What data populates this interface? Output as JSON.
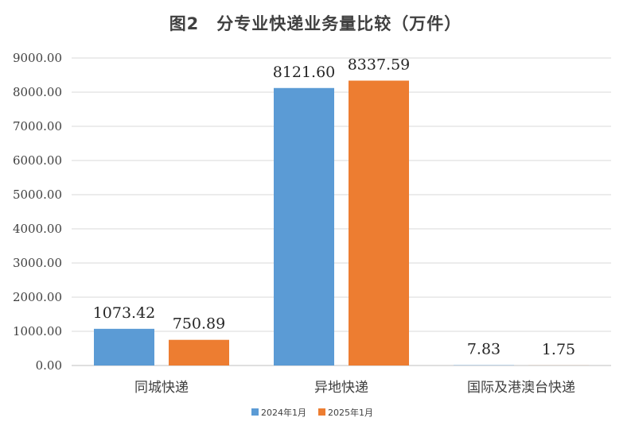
{
  "chart_data": {
    "type": "bar",
    "title": "图2　分专业快递业务量比较（万件）",
    "categories": [
      "同城快递",
      "异地快递",
      "国际及港澳台快递"
    ],
    "series": [
      {
        "name": "2024年1月",
        "values": [
          1073.42,
          8121.6,
          7.83
        ],
        "labels": [
          "1073.42",
          "8121.60",
          "7.83"
        ],
        "color": "#5B9BD5"
      },
      {
        "name": "2025年1月",
        "values": [
          750.89,
          8337.59,
          1.75
        ],
        "labels": [
          "750.89",
          "8337.59",
          "1.75"
        ],
        "color": "#ED7D31"
      }
    ],
    "yticks": [
      "0.00",
      "1000.00",
      "2000.00",
      "3000.00",
      "4000.00",
      "5000.00",
      "6000.00",
      "7000.00",
      "8000.00",
      "9000.00"
    ],
    "ylim": [
      0,
      9000
    ],
    "grid": true,
    "legend_position": "bottom",
    "xlabel": "",
    "ylabel": ""
  }
}
